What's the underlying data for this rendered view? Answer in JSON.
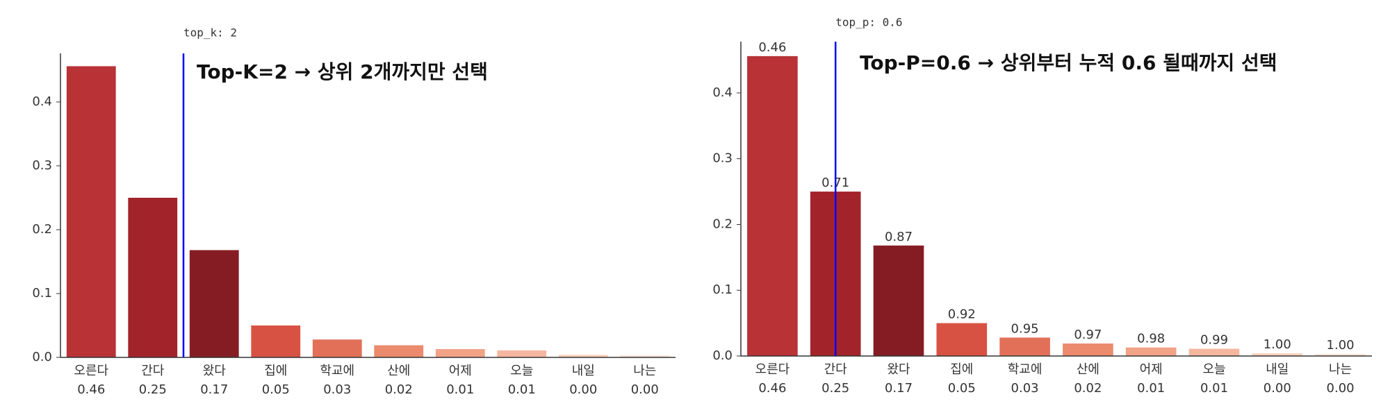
{
  "chart_data": [
    {
      "type": "bar",
      "categories": [
        "오른다",
        "간다",
        "왔다",
        "집에",
        "학교에",
        "산에",
        "어제",
        "오늘",
        "내일",
        "나는"
      ],
      "values": [
        0.456,
        0.25,
        0.168,
        0.05,
        0.028,
        0.019,
        0.013,
        0.011,
        0.004,
        0.003
      ],
      "value_labels": [
        "0.46",
        "0.25",
        "0.17",
        "0.05",
        "0.03",
        "0.02",
        "0.01",
        "0.01",
        "0.00",
        "0.00"
      ],
      "colors": [
        "#b83236",
        "#a3232a",
        "#851c24",
        "#d85244",
        "#e27058",
        "#eb8a6d",
        "#f2a386",
        "#f5b79f",
        "#f9cfbb",
        "#fce0d2"
      ],
      "ylim": [
        0,
        0.476
      ],
      "yticks": [
        {
          "value": 0,
          "label": "0.0"
        },
        0.1,
        0.2,
        0.3,
        0.4
      ],
      "vline": {
        "x": 1.5,
        "label": "top_k: 2",
        "color": "#0000ff"
      },
      "annotation": "Top-K=2 → 상위 2개까지만 선택"
    },
    {
      "type": "bar",
      "categories": [
        "오른다",
        "간다",
        "왔다",
        "집에",
        "학교에",
        "산에",
        "어제",
        "오늘",
        "내일",
        "나는"
      ],
      "values": [
        0.456,
        0.25,
        0.168,
        0.05,
        0.028,
        0.019,
        0.013,
        0.011,
        0.004,
        0.003
      ],
      "value_labels": [
        "0.46",
        "0.25",
        "0.17",
        "0.05",
        "0.03",
        "0.02",
        "0.01",
        "0.01",
        "0.00",
        "0.00"
      ],
      "bar_labels": [
        "0.46",
        "0.71",
        "0.87",
        "0.92",
        "0.95",
        "0.97",
        "0.98",
        "0.99",
        "1.00",
        "1.00"
      ],
      "colors": [
        "#b83236",
        "#a3232a",
        "#851c24",
        "#d85244",
        "#e27058",
        "#eb8a6d",
        "#f2a386",
        "#f5b79f",
        "#f9cfbb",
        "#fce0d2"
      ],
      "ylim": [
        0,
        0.478
      ],
      "yticks": [
        {
          "value": 0,
          "label": "0.0"
        },
        0.1,
        0.2,
        0.3,
        0.4
      ],
      "vline": {
        "x": 1,
        "label": "top_p: 0.6",
        "color": "#0000ff"
      },
      "annotation": "Top-P=0.6 → 상위부터 누적 0.6 될때까지 선택"
    }
  ]
}
